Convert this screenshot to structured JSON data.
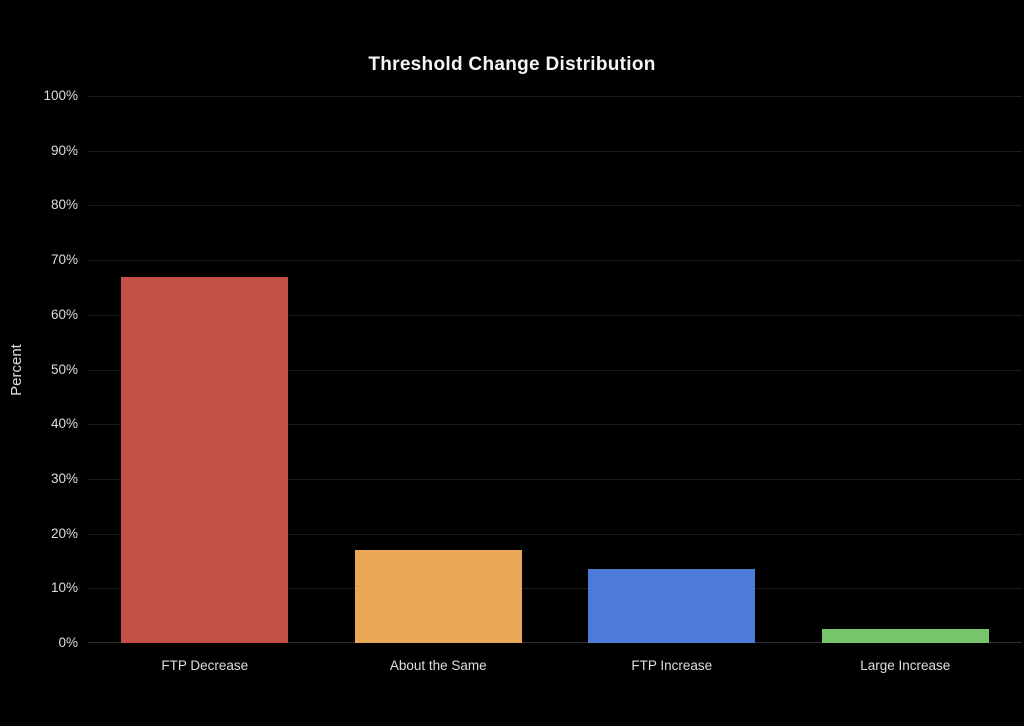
{
  "chart_data": {
    "type": "bar",
    "title": "Threshold Change Distribution",
    "ylabel": "Percent",
    "xlabel": "",
    "categories": [
      "FTP Decrease",
      "About the Same",
      "FTP Increase",
      "Large Increase"
    ],
    "values": [
      67,
      17,
      13.5,
      2.5
    ],
    "bar_colors": [
      "#c25046",
      "#e8a856",
      "#4d7cd8",
      "#76c56a"
    ],
    "ylim": [
      0,
      100
    ],
    "ytick_step": 10,
    "ytick_labels": [
      "0%",
      "10%",
      "20%",
      "30%",
      "40%",
      "50%",
      "60%",
      "70%",
      "80%",
      "90%",
      "100%"
    ],
    "grid": true,
    "legend": false,
    "colors": {
      "background": "#000000",
      "grid_line": "#1c1c1c",
      "axis_baseline": "#2d2d2d",
      "tick_text": "#dedede",
      "title_text": "#f5f5f5"
    }
  }
}
